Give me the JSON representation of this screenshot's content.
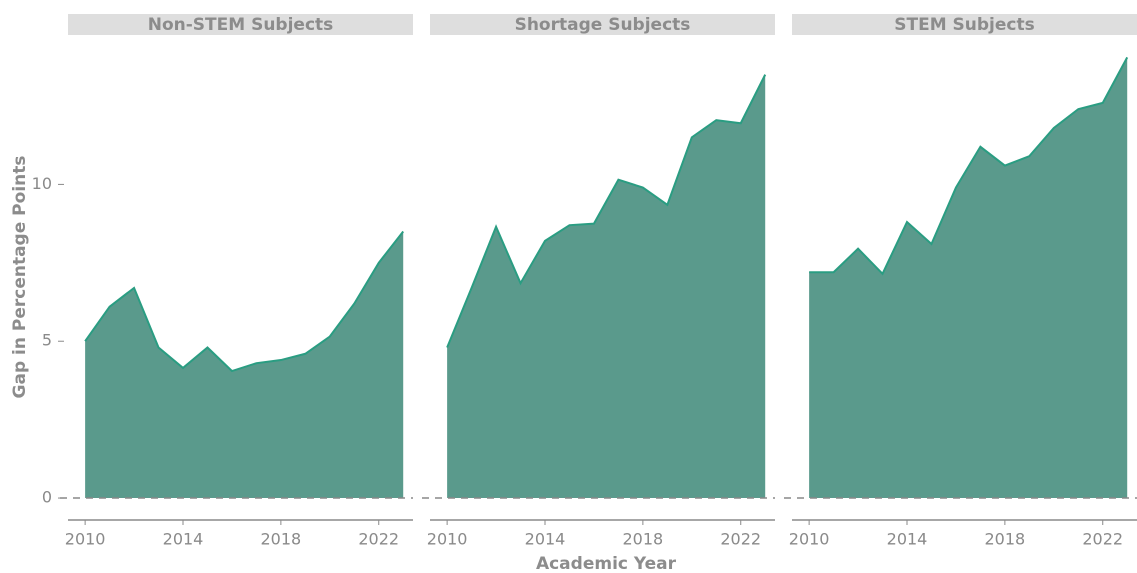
{
  "chart_data": {
    "type": "area",
    "x_label": "Academic Year",
    "y_label": "Gap in Percentage Points",
    "color": "#5a9a8c",
    "line_color": "#2a9d82",
    "xlim": [
      2009.3,
      2023.4
    ],
    "xticks": [
      2010,
      2014,
      2018,
      2022
    ],
    "ylim": [
      -0.7,
      14.7
    ],
    "yticks": [
      0,
      5,
      10
    ],
    "reference_line": 0,
    "facets": [
      {
        "title": "Non-STEM Subjects",
        "x": [
          2010,
          2011,
          2012,
          2013,
          2014,
          2015,
          2016,
          2017,
          2018,
          2019,
          2020,
          2021,
          2022,
          2023
        ],
        "values": [
          5.0,
          6.1,
          6.7,
          4.8,
          4.15,
          4.8,
          4.05,
          4.3,
          4.4,
          4.6,
          5.15,
          6.2,
          7.5,
          8.5
        ]
      },
      {
        "title": "Shortage Subjects",
        "x": [
          2010,
          2011,
          2012,
          2013,
          2014,
          2015,
          2016,
          2017,
          2018,
          2019,
          2020,
          2021,
          2022,
          2023
        ],
        "values": [
          4.8,
          6.7,
          8.65,
          6.85,
          8.2,
          8.7,
          8.75,
          10.15,
          9.9,
          9.35,
          11.5,
          12.05,
          11.95,
          13.5
        ]
      },
      {
        "title": "STEM Subjects",
        "x": [
          2010,
          2011,
          2012,
          2013,
          2014,
          2015,
          2016,
          2017,
          2018,
          2019,
          2020,
          2021,
          2022,
          2023
        ],
        "values": [
          7.2,
          7.2,
          7.95,
          7.15,
          8.8,
          8.1,
          9.9,
          11.2,
          10.6,
          10.9,
          11.8,
          12.4,
          12.6,
          14.05
        ]
      }
    ]
  }
}
